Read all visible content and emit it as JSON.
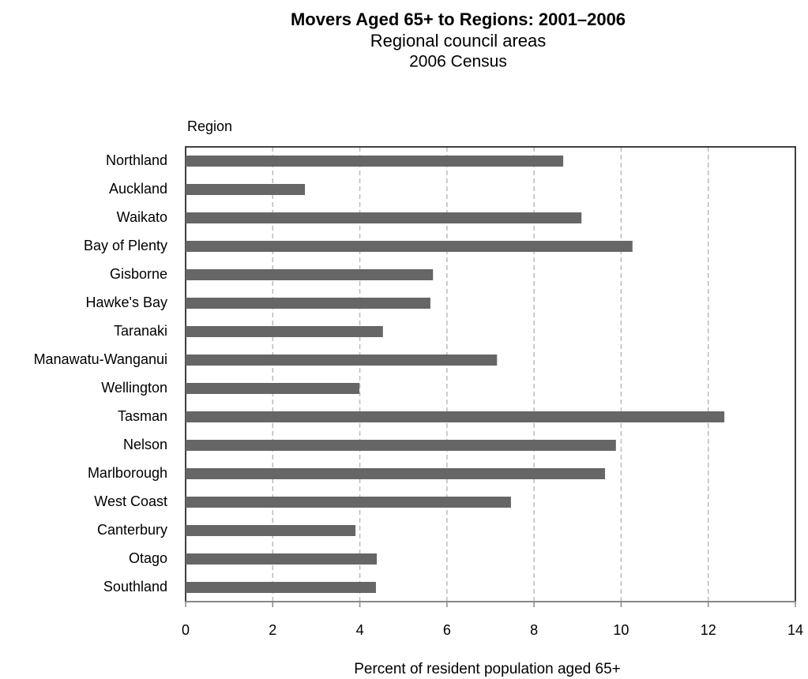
{
  "chart_data": {
    "type": "bar",
    "orientation": "horizontal",
    "title": "Movers Aged 65+ to Regions: 2001–2006",
    "subtitle": "Regional council areas",
    "subtitle2": "2006 Census",
    "y_label": "Region",
    "x_label": "Percent of resident population aged 65+",
    "categories": [
      "Northland",
      "Auckland",
      "Waikato",
      "Bay of Plenty",
      "Gisborne",
      "Hawke's Bay",
      "Taranaki",
      "Manawatu-Wanganui",
      "Wellington",
      "Tasman",
      "Nelson",
      "Marlborough",
      "West Coast",
      "Canterbury",
      "Otago",
      "Southland"
    ],
    "values": [
      8.67,
      2.74,
      9.09,
      10.26,
      5.68,
      5.62,
      4.53,
      7.15,
      3.99,
      12.37,
      9.88,
      9.63,
      7.47,
      3.9,
      4.39,
      4.37
    ],
    "color": "#666666",
    "xlim": [
      0,
      14
    ],
    "xticks": [
      0,
      2,
      4,
      6,
      8,
      10,
      12,
      14
    ],
    "grid": true
  }
}
